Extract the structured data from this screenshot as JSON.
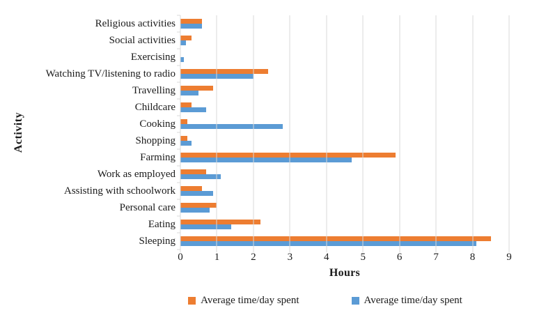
{
  "colors": {
    "series1_orange": "#ED7D31",
    "series2_blue": "#5B9BD5",
    "gridline": "#D9D9D9",
    "text": "#1A1A1A"
  },
  "chart_data": {
    "type": "bar",
    "orientation": "horizontal",
    "title": "",
    "xlabel": "Hours",
    "ylabel": "Activity",
    "xlim": [
      0,
      9
    ],
    "xticks": [
      0,
      1,
      2,
      3,
      4,
      5,
      6,
      7,
      8,
      9
    ],
    "grid": true,
    "legend_position": "bottom",
    "categories": [
      "Religious activities",
      "Social activities",
      "Exercising",
      "Watching TV/listening to radio",
      "Travelling",
      "Childcare",
      "Cooking",
      "Shopping",
      "Farming",
      "Work as employed",
      "Assisting with schoolwork",
      "Personal care",
      "Eating",
      "Sleeping"
    ],
    "series": [
      {
        "name": "Average time/day spent",
        "color": "#ED7D31",
        "values": [
          0.6,
          0.3,
          0,
          2.4,
          0.9,
          0.3,
          0.2,
          0.2,
          5.9,
          0.7,
          0.6,
          1.0,
          2.2,
          8.5
        ]
      },
      {
        "name": "Average time/day spent",
        "color": "#5B9BD5",
        "values": [
          0.6,
          0.15,
          0.1,
          2.0,
          0.5,
          0.7,
          2.8,
          0.3,
          4.7,
          1.1,
          0.9,
          0.8,
          1.4,
          8.1
        ]
      }
    ]
  }
}
